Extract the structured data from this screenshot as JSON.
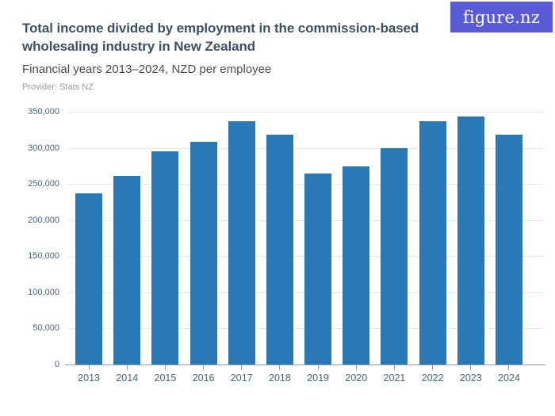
{
  "header": {
    "logo_text": "figure.nz",
    "title": "Total income divided by employment in the commission-based\nwholesaling industry in New Zealand",
    "subtitle": "Financial years 2013–2024, NZD per employee",
    "provider": "Provider: Stats NZ"
  },
  "colors": {
    "bar": "#2879b5",
    "title_text": "#3d5166",
    "axis_labels": "#466482",
    "gridline": "#e8e8e8",
    "axis_line": "#9a9a9a",
    "logo_background": "#5a5bd6"
  },
  "chart_data": {
    "type": "bar",
    "title": "Total income divided by employment in the commission-based wholesaling industry in New Zealand",
    "subtitle": "Financial years 2013–2024, NZD per employee",
    "provider": "Provider: Stats NZ",
    "categories": [
      "2013",
      "2014",
      "2015",
      "2016",
      "2017",
      "2018",
      "2019",
      "2020",
      "2021",
      "2022",
      "2023",
      "2024"
    ],
    "values": [
      237000,
      261000,
      295000,
      308000,
      337000,
      318000,
      264000,
      274000,
      300000,
      337000,
      343000,
      318000
    ],
    "unit": "NZD per employee",
    "xlabel": "",
    "ylabel": "",
    "ylim": [
      0,
      350000
    ],
    "ytick_values": [
      0,
      50000,
      100000,
      150000,
      200000,
      250000,
      300000,
      350000
    ],
    "ytick_labels": [
      "0",
      "50,000",
      "100,000",
      "150,000",
      "200,000",
      "250,000",
      "300,000",
      "350,000"
    ],
    "grid": true,
    "legend_position": "none",
    "bar_color": "#2879b5"
  }
}
